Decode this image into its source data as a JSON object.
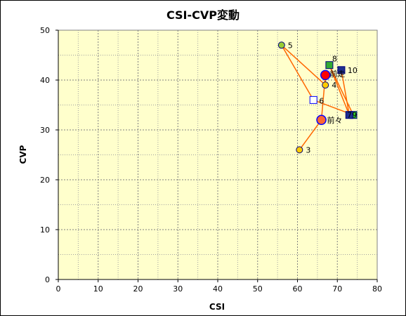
{
  "chart_data": {
    "type": "scatter",
    "title": "CSI-CVP変動",
    "xlabel": "CSI",
    "ylabel": "CVP",
    "xlim": [
      0,
      80
    ],
    "ylim": [
      0,
      50
    ],
    "x_ticks": [
      0,
      10,
      20,
      30,
      40,
      50,
      60,
      70,
      80
    ],
    "y_ticks": [
      0,
      10,
      20,
      30,
      40,
      50
    ],
    "grid": true,
    "background_color": "#ffffcc",
    "line_color": "#ff6600",
    "path_order": [
      "3",
      "前々",
      "前走",
      "4",
      "5",
      "6",
      "7",
      "8",
      "9",
      "10"
    ],
    "points": [
      {
        "label": "前走",
        "x": 67,
        "y": 41,
        "marker": "circle-large",
        "fill": "#ff0000",
        "stroke": "#0000ff"
      },
      {
        "label": "前々",
        "x": 66,
        "y": 32,
        "marker": "circle-large",
        "fill": "#ff6633",
        "stroke": "#0000ff"
      },
      {
        "label": "3",
        "x": 60.5,
        "y": 26,
        "marker": "circle",
        "fill": "#ffcc00",
        "stroke": "#000080"
      },
      {
        "label": "4",
        "x": 67,
        "y": 39,
        "marker": "circle",
        "fill": "#ffcc00",
        "stroke": "#000080"
      },
      {
        "label": "5",
        "x": 56,
        "y": 47,
        "marker": "circle",
        "fill": "#99cc33",
        "stroke": "#000080"
      },
      {
        "label": "6",
        "x": 64,
        "y": 36,
        "marker": "square",
        "fill": "#ffffff",
        "stroke": "#0000ff"
      },
      {
        "label": "7",
        "x": 74,
        "y": 33,
        "marker": "square",
        "fill": "#33cc33",
        "stroke": "#000080"
      },
      {
        "label": "8",
        "x": 68,
        "y": 43,
        "marker": "square",
        "fill": "#33aa33",
        "stroke": "#000080"
      },
      {
        "label": "9",
        "x": 73,
        "y": 33,
        "marker": "square",
        "fill": "#1f2f8f",
        "stroke": "#000080"
      },
      {
        "label": "10",
        "x": 71,
        "y": 42,
        "marker": "square",
        "fill": "#1f2f8f",
        "stroke": "#000080"
      }
    ]
  }
}
